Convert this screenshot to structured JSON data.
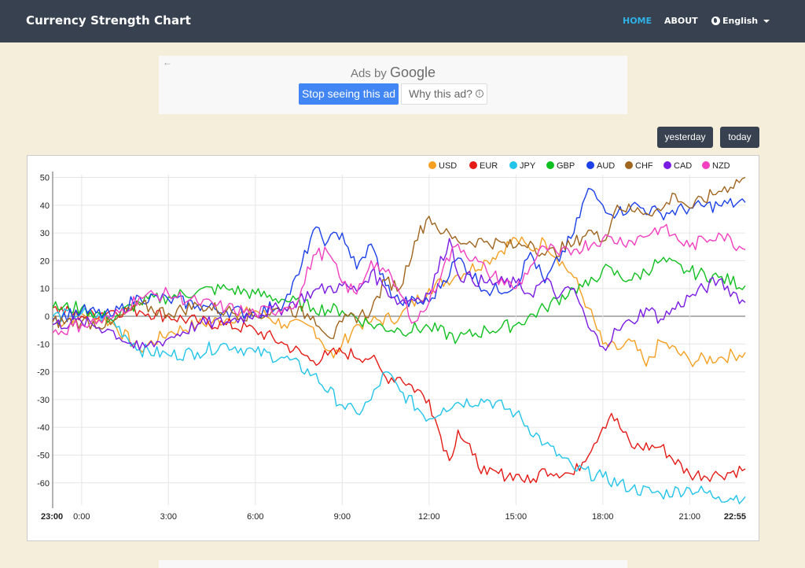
{
  "navbar": {
    "brand": "Currency Strength Chart",
    "home": "HOME",
    "about": "ABOUT",
    "language": "English"
  },
  "ad": {
    "back_arrow": "←",
    "ads_by": "Ads by",
    "google": "Google",
    "stop_label": "Stop seeing this ad",
    "why_label": "Why this ad?",
    "info_glyph": "i"
  },
  "buttons": {
    "yesterday": "yesterday",
    "today": "today"
  },
  "chart_data": {
    "type": "line",
    "title": "",
    "xlabel": "",
    "ylabel": "",
    "ylim": [
      -68,
      51
    ],
    "yticks": [
      50,
      40,
      30,
      20,
      10,
      0,
      -10,
      -20,
      -30,
      -40,
      -50,
      -60
    ],
    "x_range_hours": [
      -1,
      22.92
    ],
    "xticks": [
      {
        "h": -1,
        "label": "23:00",
        "bold": true
      },
      {
        "h": 0,
        "label": "0:00"
      },
      {
        "h": 3,
        "label": "3:00"
      },
      {
        "h": 6,
        "label": "6:00"
      },
      {
        "h": 9,
        "label": "9:00"
      },
      {
        "h": 12,
        "label": "12:00"
      },
      {
        "h": 15,
        "label": "15:00"
      },
      {
        "h": 18,
        "label": "18:00"
      },
      {
        "h": 21,
        "label": "21:00"
      },
      {
        "h": 22.92,
        "label": "22:55",
        "bold": true
      }
    ],
    "grid": true,
    "legend_position": "top-right",
    "series": [
      {
        "name": "USD",
        "color": "#f5a021",
        "points": [
          [
            -1,
            -3
          ],
          [
            0,
            1
          ],
          [
            1,
            -2
          ],
          [
            2,
            -12
          ],
          [
            3,
            -6
          ],
          [
            4,
            -3
          ],
          [
            5,
            -1
          ],
          [
            6,
            2
          ],
          [
            7,
            -3
          ],
          [
            8,
            -4
          ],
          [
            8.7,
            -15
          ],
          [
            9,
            -10
          ],
          [
            9.5,
            -3
          ],
          [
            10,
            -2
          ],
          [
            11,
            0
          ],
          [
            12,
            10
          ],
          [
            13,
            15
          ],
          [
            14,
            20
          ],
          [
            15,
            28
          ],
          [
            15.5,
            24
          ],
          [
            16,
            27
          ],
          [
            17,
            14
          ],
          [
            17.5,
            3
          ],
          [
            18,
            -10
          ],
          [
            18.5,
            -12
          ],
          [
            19,
            -9
          ],
          [
            19.5,
            -18
          ],
          [
            20,
            -9
          ],
          [
            21,
            -16
          ],
          [
            22,
            -15
          ],
          [
            22.92,
            -13
          ]
        ]
      },
      {
        "name": "EUR",
        "color": "#e41b17",
        "points": [
          [
            -1,
            3
          ],
          [
            0,
            0
          ],
          [
            1,
            2
          ],
          [
            2,
            2
          ],
          [
            3,
            0
          ],
          [
            4,
            -2
          ],
          [
            5,
            -3
          ],
          [
            6,
            -5
          ],
          [
            7,
            -10
          ],
          [
            8,
            -16
          ],
          [
            8.5,
            -14
          ],
          [
            9,
            -13
          ],
          [
            10,
            -15
          ],
          [
            10.5,
            -22
          ],
          [
            11,
            -22
          ],
          [
            12,
            -30
          ],
          [
            12.3,
            -40
          ],
          [
            12.7,
            -52
          ],
          [
            13,
            -41
          ],
          [
            13.5,
            -50
          ],
          [
            14,
            -57
          ],
          [
            15,
            -57
          ],
          [
            15.5,
            -60
          ],
          [
            16,
            -55
          ],
          [
            17,
            -57
          ],
          [
            18,
            -40
          ],
          [
            18.3,
            -35
          ],
          [
            19,
            -47
          ],
          [
            20,
            -47
          ],
          [
            21,
            -57
          ],
          [
            22,
            -57
          ],
          [
            22.92,
            -55
          ]
        ]
      },
      {
        "name": "JPY",
        "color": "#22c4ea",
        "points": [
          [
            -1,
            0
          ],
          [
            0,
            1
          ],
          [
            1,
            -1
          ],
          [
            2,
            -12
          ],
          [
            3,
            -14
          ],
          [
            4,
            -13
          ],
          [
            5,
            -10
          ],
          [
            6,
            -13
          ],
          [
            7,
            -15
          ],
          [
            8,
            -21
          ],
          [
            9,
            -32
          ],
          [
            9.5,
            -35
          ],
          [
            10,
            -30
          ],
          [
            10.5,
            -20
          ],
          [
            11,
            -27
          ],
          [
            12,
            -37
          ],
          [
            12.5,
            -33
          ],
          [
            13,
            -31
          ],
          [
            14,
            -30
          ],
          [
            15,
            -35
          ],
          [
            16,
            -46
          ],
          [
            17,
            -55
          ],
          [
            18,
            -58
          ],
          [
            19,
            -62
          ],
          [
            20,
            -64
          ],
          [
            21,
            -62
          ],
          [
            22,
            -65
          ],
          [
            22.92,
            -65
          ]
        ]
      },
      {
        "name": "GBP",
        "color": "#10c020",
        "points": [
          [
            -1,
            3
          ],
          [
            0,
            3
          ],
          [
            1,
            -1
          ],
          [
            2,
            5
          ],
          [
            3,
            7
          ],
          [
            4,
            9
          ],
          [
            5,
            10
          ],
          [
            6,
            8
          ],
          [
            7,
            6
          ],
          [
            8,
            3
          ],
          [
            9,
            2
          ],
          [
            10,
            -3
          ],
          [
            11,
            -5
          ],
          [
            12,
            -4
          ],
          [
            13,
            -8
          ],
          [
            14,
            -5
          ],
          [
            15,
            -3
          ],
          [
            16,
            3
          ],
          [
            17,
            10
          ],
          [
            17.5,
            11
          ],
          [
            18,
            17
          ],
          [
            19,
            13
          ],
          [
            20,
            20
          ],
          [
            21,
            16
          ],
          [
            22,
            14
          ],
          [
            22.92,
            11
          ]
        ]
      },
      {
        "name": "AUD",
        "color": "#1d41e8",
        "points": [
          [
            -1,
            -1
          ],
          [
            0,
            2
          ],
          [
            1,
            0
          ],
          [
            2,
            7
          ],
          [
            3,
            6
          ],
          [
            4,
            4
          ],
          [
            5,
            2
          ],
          [
            6,
            1
          ],
          [
            7,
            5
          ],
          [
            7.5,
            15
          ],
          [
            8,
            31
          ],
          [
            8.5,
            27
          ],
          [
            9,
            30
          ],
          [
            9.5,
            17
          ],
          [
            10,
            26
          ],
          [
            10.5,
            11
          ],
          [
            11,
            5
          ],
          [
            12,
            5
          ],
          [
            13,
            21
          ],
          [
            14,
            9
          ],
          [
            15,
            11
          ],
          [
            15.5,
            23
          ],
          [
            16,
            12
          ],
          [
            17,
            30
          ],
          [
            17.5,
            46
          ],
          [
            18,
            40
          ],
          [
            18.5,
            37
          ],
          [
            19,
            40
          ],
          [
            20,
            37
          ],
          [
            21,
            39
          ],
          [
            22,
            40
          ],
          [
            22.92,
            41
          ]
        ]
      },
      {
        "name": "CHF",
        "color": "#a0651e",
        "points": [
          [
            -1,
            -2
          ],
          [
            0,
            -2
          ],
          [
            1,
            -3
          ],
          [
            2,
            4
          ],
          [
            3,
            1
          ],
          [
            4,
            4
          ],
          [
            5,
            2
          ],
          [
            6,
            0
          ],
          [
            7,
            3
          ],
          [
            8,
            0
          ],
          [
            8.7,
            -8
          ],
          [
            9,
            -2
          ],
          [
            10,
            2
          ],
          [
            10.5,
            13
          ],
          [
            11,
            10
          ],
          [
            11.5,
            27
          ],
          [
            12,
            36
          ],
          [
            12.5,
            30
          ],
          [
            13,
            27
          ],
          [
            14,
            27
          ],
          [
            15,
            25
          ],
          [
            15.5,
            27
          ],
          [
            16,
            22
          ],
          [
            17,
            26
          ],
          [
            17.5,
            31
          ],
          [
            18,
            27
          ],
          [
            18.5,
            40
          ],
          [
            19,
            38
          ],
          [
            20,
            38
          ],
          [
            20.5,
            44
          ],
          [
            21,
            39
          ],
          [
            22,
            45
          ],
          [
            22.92,
            50
          ]
        ]
      },
      {
        "name": "CAD",
        "color": "#7a1be3",
        "points": [
          [
            -1,
            -3
          ],
          [
            0,
            -2
          ],
          [
            1,
            -5
          ],
          [
            2,
            -12
          ],
          [
            3,
            -8
          ],
          [
            4,
            -3
          ],
          [
            5,
            -2
          ],
          [
            6,
            1
          ],
          [
            7,
            3
          ],
          [
            8,
            9
          ],
          [
            9,
            11
          ],
          [
            9.5,
            9
          ],
          [
            10,
            16
          ],
          [
            10.5,
            10
          ],
          [
            11,
            5
          ],
          [
            12,
            8
          ],
          [
            12.7,
            28
          ],
          [
            13,
            15
          ],
          [
            14,
            12
          ],
          [
            15,
            12
          ],
          [
            15.5,
            8
          ],
          [
            16,
            13
          ],
          [
            16.5,
            7
          ],
          [
            17,
            10
          ],
          [
            17.5,
            -4
          ],
          [
            18,
            -11
          ],
          [
            18.5,
            -5
          ],
          [
            19,
            -2
          ],
          [
            19.5,
            3
          ],
          [
            20,
            -1
          ],
          [
            21,
            7
          ],
          [
            22,
            13
          ],
          [
            22.92,
            5
          ]
        ]
      },
      {
        "name": "NZD",
        "color": "#f23fc0",
        "points": [
          [
            -1,
            -6
          ],
          [
            0,
            -3
          ],
          [
            1,
            -1
          ],
          [
            2,
            7
          ],
          [
            3,
            8
          ],
          [
            4,
            5
          ],
          [
            5,
            3
          ],
          [
            6,
            1
          ],
          [
            7,
            3
          ],
          [
            7.5,
            6
          ],
          [
            8,
            22
          ],
          [
            8.5,
            23
          ],
          [
            9,
            12
          ],
          [
            9.5,
            8
          ],
          [
            10,
            20
          ],
          [
            10.5,
            16
          ],
          [
            11,
            8
          ],
          [
            11.5,
            -2
          ],
          [
            12,
            5
          ],
          [
            12.5,
            18
          ],
          [
            13,
            26
          ],
          [
            14,
            16
          ],
          [
            15,
            10
          ],
          [
            15.5,
            18
          ],
          [
            16,
            25
          ],
          [
            16.5,
            22
          ],
          [
            17,
            24
          ],
          [
            18,
            28
          ],
          [
            19,
            27
          ],
          [
            20,
            32
          ],
          [
            21,
            25
          ],
          [
            22,
            30
          ],
          [
            22.92,
            24
          ]
        ]
      }
    ]
  }
}
